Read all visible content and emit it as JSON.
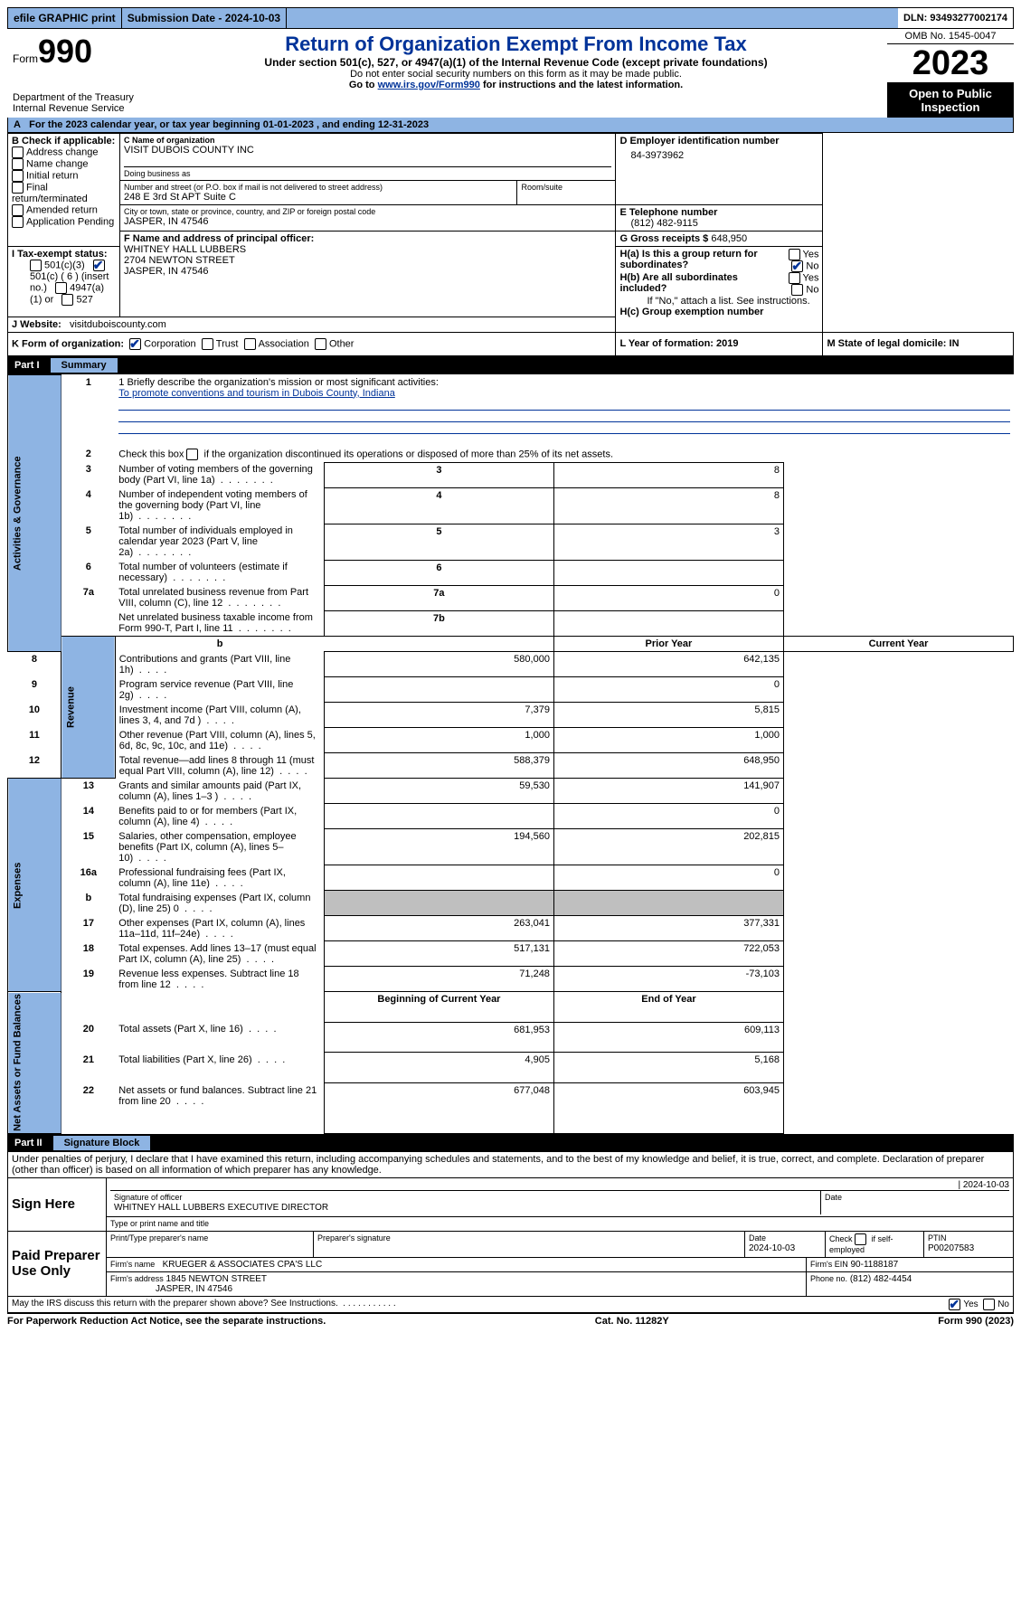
{
  "topbar": {
    "efile": "efile GRAPHIC print",
    "submission_label": "Submission Date - 2024-10-03",
    "dln_label": "DLN: 93493277002174"
  },
  "header": {
    "form_word": "Form",
    "form_num": "990",
    "dept": "Department of the Treasury",
    "irs": "Internal Revenue Service",
    "title": "Return of Organization Exempt From Income Tax",
    "sub": "Under section 501(c), 527, or 4947(a)(1) of the Internal Revenue Code (except private foundations)",
    "note1": "Do not enter social security numbers on this form as it may be made public.",
    "note2_prefix": "Go to ",
    "note2_link": "www.irs.gov/Form990",
    "note2_suffix": " for instructions and the latest information.",
    "omb": "OMB No. 1545-0047",
    "year": "2023",
    "open": "Open to Public Inspection"
  },
  "taxyear": "For the 2023 calendar year, or tax year beginning 01-01-2023   , and ending 12-31-2023",
  "boxA": "A",
  "boxB": {
    "label": "B Check if applicable:",
    "items": [
      "Address change",
      "Name change",
      "Initial return",
      "Final return/terminated",
      "Amended return",
      "Application Pending"
    ]
  },
  "boxC": {
    "name_label": "C Name of organization",
    "name": "VISIT DUBOIS COUNTY INC",
    "dba_label": "Doing business as",
    "street_label": "Number and street (or P.O. box if mail is not delivered to street address)",
    "room_label": "Room/suite",
    "street": "248 E 3rd St APT Suite C",
    "city_label": "City or town, state or province, country, and ZIP or foreign postal code",
    "city": "JASPER, IN  47546"
  },
  "boxD": {
    "label": "D Employer identification number",
    "value": "84-3973962"
  },
  "boxE": {
    "label": "E Telephone number",
    "value": "(812) 482-9115"
  },
  "boxG": {
    "label": "G Gross receipts $",
    "value": "648,950"
  },
  "boxF": {
    "label": "F  Name and address of principal officer:",
    "name": "WHITNEY HALL LUBBERS",
    "street": "2704 NEWTON STREET",
    "city": "JASPER, IN  47546"
  },
  "boxH": {
    "a": "H(a)  Is this a group return for subordinates?",
    "b": "H(b)  Are all subordinates included?",
    "b_note": "If \"No,\" attach a list. See instructions.",
    "c": "H(c)  Group exemption number",
    "yes": "Yes",
    "no": "No"
  },
  "boxI": {
    "label": "I      Tax-exempt status:",
    "o1": "501(c)(3)",
    "o2": "501(c) ( 6 ) (insert no.)",
    "o3": "4947(a)(1) or",
    "o4": "527"
  },
  "boxJ": {
    "label": "J      Website:",
    "value": "visitduboiscounty.com"
  },
  "boxK": {
    "label": "K Form of organization:",
    "o1": "Corporation",
    "o2": "Trust",
    "o3": "Association",
    "o4": "Other"
  },
  "boxL": {
    "label": "L Year of formation: 2019"
  },
  "boxM": {
    "label": "M State of legal domicile: IN"
  },
  "part1": {
    "num": "Part I",
    "title": "Summary"
  },
  "sideLabels": {
    "gov": "Activities & Governance",
    "rev": "Revenue",
    "exp": "Expenses",
    "net": "Net Assets or Fund Balances"
  },
  "gov": {
    "l1_label": "1   Briefly describe the organization's mission or most significant activities:",
    "l1_value": "To promote conventions and tourism in Dubois County, Indiana",
    "l2": "Check this box        if the organization discontinued its operations or disposed of more than 25% of its net assets.",
    "rows": [
      {
        "n": "3",
        "t": "Number of voting members of the governing body (Part VI, line 1a)",
        "ref": "3",
        "v": "8"
      },
      {
        "n": "4",
        "t": "Number of independent voting members of the governing body (Part VI, line 1b)",
        "ref": "4",
        "v": "8"
      },
      {
        "n": "5",
        "t": "Total number of individuals employed in calendar year 2023 (Part V, line 2a)",
        "ref": "5",
        "v": "3"
      },
      {
        "n": "6",
        "t": "Total number of volunteers (estimate if necessary)",
        "ref": "6",
        "v": ""
      },
      {
        "n": "7a",
        "t": "Total unrelated business revenue from Part VIII, column (C), line 12",
        "ref": "7a",
        "v": "0"
      },
      {
        "n": "",
        "t": "Net unrelated business taxable income from Form 990-T, Part I, line 11",
        "ref": "7b",
        "v": ""
      }
    ]
  },
  "colHeaders": {
    "b": "b",
    "prior": "Prior Year",
    "current": "Current Year",
    "boy": "Beginning of Current Year",
    "eoy": "End of Year"
  },
  "rev": [
    {
      "n": "8",
      "t": "Contributions and grants (Part VIII, line 1h)",
      "p": "580,000",
      "c": "642,135"
    },
    {
      "n": "9",
      "t": "Program service revenue (Part VIII, line 2g)",
      "p": "",
      "c": "0"
    },
    {
      "n": "10",
      "t": "Investment income (Part VIII, column (A), lines 3, 4, and 7d )",
      "p": "7,379",
      "c": "5,815"
    },
    {
      "n": "11",
      "t": "Other revenue (Part VIII, column (A), lines 5, 6d, 8c, 9c, 10c, and 11e)",
      "p": "1,000",
      "c": "1,000"
    },
    {
      "n": "12",
      "t": "Total revenue—add lines 8 through 11 (must equal Part VIII, column (A), line 12)",
      "p": "588,379",
      "c": "648,950"
    }
  ],
  "exp": [
    {
      "n": "13",
      "t": "Grants and similar amounts paid (Part IX, column (A), lines 1–3 )",
      "p": "59,530",
      "c": "141,907"
    },
    {
      "n": "14",
      "t": "Benefits paid to or for members (Part IX, column (A), line 4)",
      "p": "",
      "c": "0"
    },
    {
      "n": "15",
      "t": "Salaries, other compensation, employee benefits (Part IX, column (A), lines 5–10)",
      "p": "194,560",
      "c": "202,815"
    },
    {
      "n": "16a",
      "t": "Professional fundraising fees (Part IX, column (A), line 11e)",
      "p": "",
      "c": "0"
    },
    {
      "n": "b",
      "t": "Total fundraising expenses (Part IX, column (D), line 25) 0",
      "p": "GREY",
      "c": "GREY"
    },
    {
      "n": "17",
      "t": "Other expenses (Part IX, column (A), lines 11a–11d, 11f–24e)",
      "p": "263,041",
      "c": "377,331"
    },
    {
      "n": "18",
      "t": "Total expenses. Add lines 13–17 (must equal Part IX, column (A), line 25)",
      "p": "517,131",
      "c": "722,053"
    },
    {
      "n": "19",
      "t": "Revenue less expenses. Subtract line 18 from line 12",
      "p": "71,248",
      "c": "-73,103"
    }
  ],
  "net": [
    {
      "n": "20",
      "t": "Total assets (Part X, line 16)",
      "p": "681,953",
      "c": "609,113"
    },
    {
      "n": "21",
      "t": "Total liabilities (Part X, line 26)",
      "p": "4,905",
      "c": "5,168"
    },
    {
      "n": "22",
      "t": "Net assets or fund balances. Subtract line 21 from line 20",
      "p": "677,048",
      "c": "603,945"
    }
  ],
  "part2": {
    "num": "Part II",
    "title": "Signature Block"
  },
  "sig": {
    "penalty": "Under penalties of perjury, I declare that I have examined this return, including accompanying schedules and statements, and to the best of my knowledge and belief, it is true, correct, and complete. Declaration of preparer (other than officer) is based on all information of which preparer has any knowledge.",
    "sign_here": "Sign Here",
    "sig_officer_label": "Signature of officer",
    "date_label": "Date",
    "sig_date": "2024-10-03",
    "officer_name": "WHITNEY HALL LUBBERS  EXECUTIVE DIRECTOR",
    "type_label": "Type or print name and title",
    "paid": "Paid Preparer Use Only",
    "prep_name_label": "Print/Type preparer's name",
    "prep_sig_label": "Preparer's signature",
    "prep_date_label": "Date",
    "prep_date": "2024-10-03",
    "self_emp": "Check        if self-employed",
    "ptin_label": "PTIN",
    "ptin": "P00207583",
    "firm_name_label": "Firm's name",
    "firm_name": "KRUEGER & ASSOCIATES CPA'S LLC",
    "firm_ein_label": "Firm's EIN",
    "firm_ein": "90-1188187",
    "firm_addr_label": "Firm's address",
    "firm_addr1": "1845 NEWTON STREET",
    "firm_addr2": "JASPER, IN  47546",
    "phone_label": "Phone no.",
    "phone": "(812) 482-4454",
    "discuss": "May the IRS discuss this return with the preparer shown above? See Instructions."
  },
  "footer": {
    "paperwork": "For Paperwork Reduction Act Notice, see the separate instructions.",
    "cat": "Cat. No. 11282Y",
    "form": "Form 990 (2023)"
  }
}
